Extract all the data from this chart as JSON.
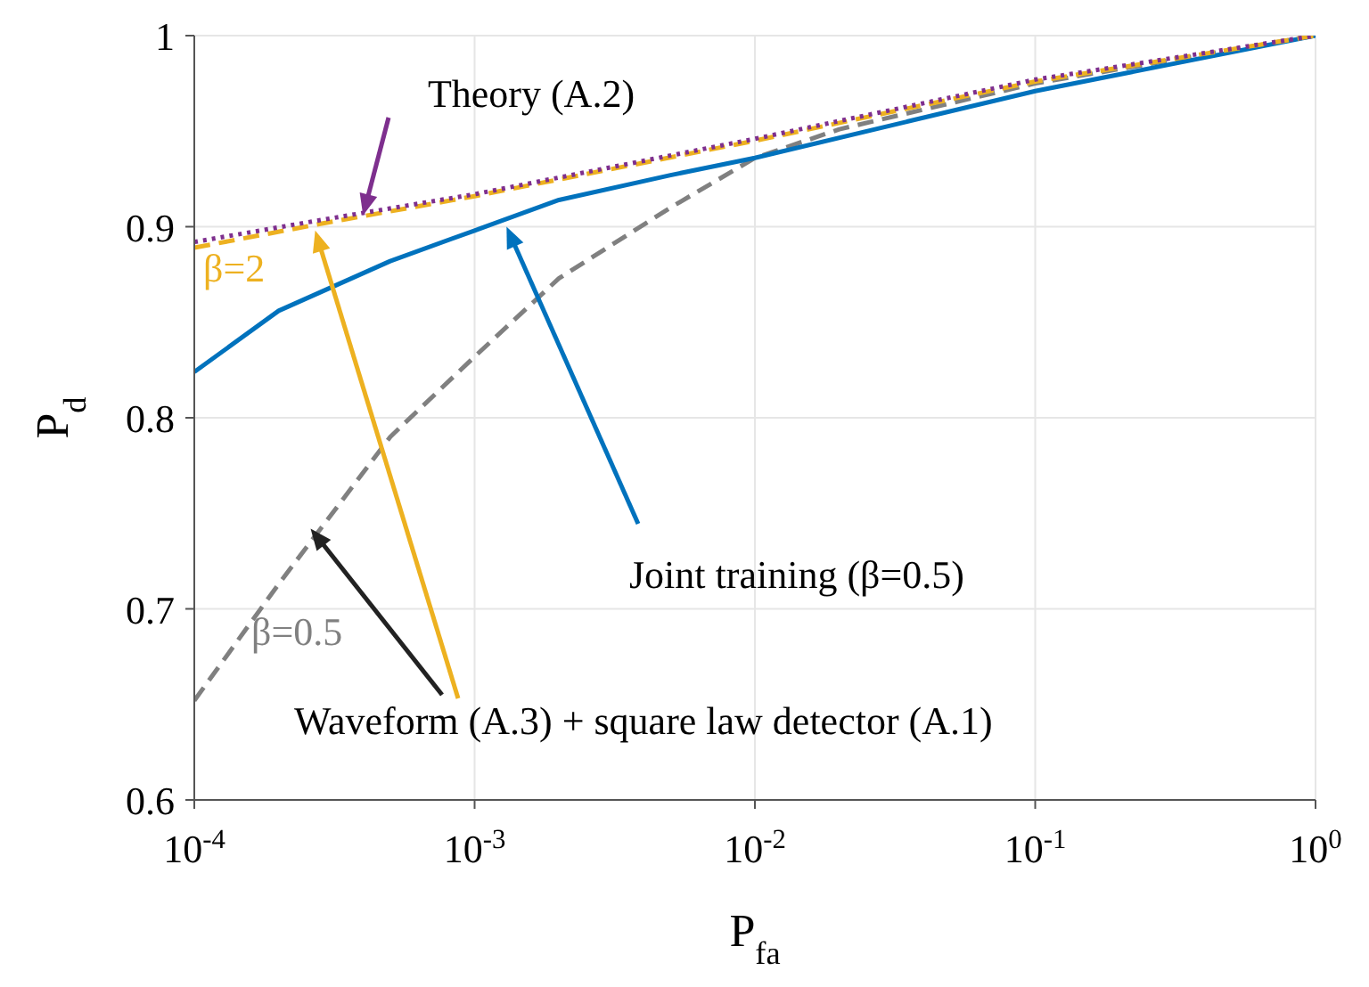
{
  "chart_data": {
    "type": "line",
    "xlabel": "P$_{fa}$",
    "ylabel": "P$_{d}$",
    "log": "x",
    "xlim": [
      0.0001,
      1
    ],
    "xticks": [
      {
        "value": 0.0001,
        "label": "10$^{-4}$"
      },
      {
        "value": 0.001,
        "label": "10$^{-3}$"
      },
      {
        "value": 0.01,
        "label": "10$^{-2}$"
      },
      {
        "value": 0.1,
        "label": "10$^{-1}$"
      },
      {
        "value": 1,
        "label": "10$^{0}$"
      }
    ],
    "ylim": [
      0.6,
      1
    ],
    "yticks": [
      0.6,
      0.7,
      0.8,
      0.9,
      1
    ],
    "grid": true,
    "series": [
      {
        "name": "Theory (A.2)",
        "color": "#7e2f8e",
        "line_style": "dotted",
        "x": [
          0.0001,
          0.00027,
          0.001,
          0.01,
          0.1,
          1
        ],
        "values": [
          0.892,
          0.903,
          0.917,
          0.946,
          0.977,
          1.0
        ]
      },
      {
        "name": "β=2",
        "color": "#edb120",
        "line_style": "dashed",
        "x": [
          0.0001,
          0.00027,
          0.001,
          0.01,
          0.1,
          1
        ],
        "values": [
          0.889,
          0.901,
          0.916,
          0.945,
          0.976,
          1.0
        ]
      },
      {
        "name": "Joint training (β=0.5)",
        "color": "#0072bd",
        "line_style": "solid",
        "x": [
          0.0001,
          0.0002,
          0.0005,
          0.001,
          0.002,
          0.005,
          0.01,
          0.1,
          1
        ],
        "values": [
          0.824,
          0.856,
          0.882,
          0.898,
          0.914,
          0.927,
          0.936,
          0.971,
          1.0
        ]
      },
      {
        "name": "β=0.5",
        "color": "#808080",
        "line_style": "dashed",
        "x": [
          0.0001,
          0.0002,
          0.0005,
          0.001,
          0.002,
          0.005,
          0.01,
          0.02,
          0.1,
          1
        ],
        "values": [
          0.652,
          0.713,
          0.79,
          0.832,
          0.873,
          0.91,
          0.936,
          0.951,
          0.975,
          1.0
        ]
      }
    ],
    "annotations": [
      {
        "text": "Waveform (A.3) + square law detector (A.1)",
        "x": 0.00026,
        "y": 0.742
      }
    ]
  }
}
